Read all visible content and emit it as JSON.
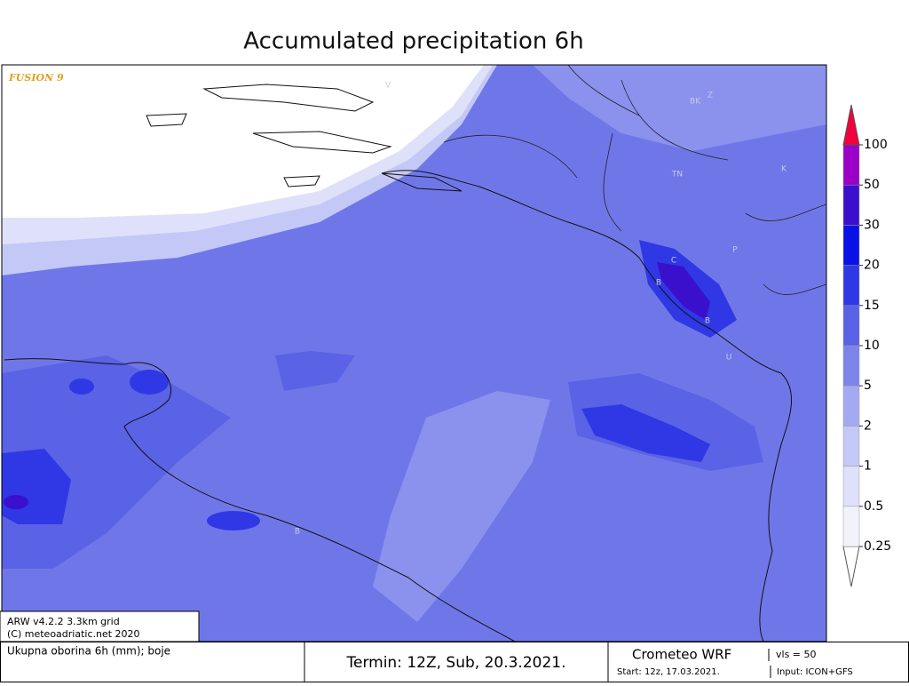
{
  "header": {
    "title": "Accumulated precipitation 6h",
    "watermark": "FUSION 9"
  },
  "map_labels": [
    {
      "text": "V"
    },
    {
      "text": "BK"
    },
    {
      "text": "Z"
    },
    {
      "text": "K"
    },
    {
      "text": "TN"
    },
    {
      "text": "P"
    },
    {
      "text": "C"
    },
    {
      "text": "B"
    },
    {
      "text": "B"
    },
    {
      "text": "U"
    },
    {
      "text": "B"
    }
  ],
  "legend": {
    "levels": [
      0.25,
      0.5,
      1,
      2,
      5,
      10,
      15,
      20,
      30,
      50,
      100
    ],
    "colors": [
      "#f2f2fd",
      "#dfe0fa",
      "#c4c8f6",
      "#a4aaf1",
      "#7c84ea",
      "#5a62e6",
      "#2f38e4",
      "#0a10e6",
      "#3a10cc",
      "#9a00c8"
    ],
    "under_color": "#ffffff",
    "over_color": "#f0003c"
  },
  "footer": {
    "model_info": "ARW v4.2.2 3.3km grid",
    "copyright": "(C) meteoadriatic.net 2020",
    "description": "Ukupna oborina 6h (mm); boje",
    "valid_time": "Termin: 12Z, Sub, 20.3.2021.",
    "brand": "Crometeo WRF",
    "vls": "vls = 50",
    "start": "Start: 12z, 17.03.2021.",
    "input": "Input: ICON+GFS"
  }
}
